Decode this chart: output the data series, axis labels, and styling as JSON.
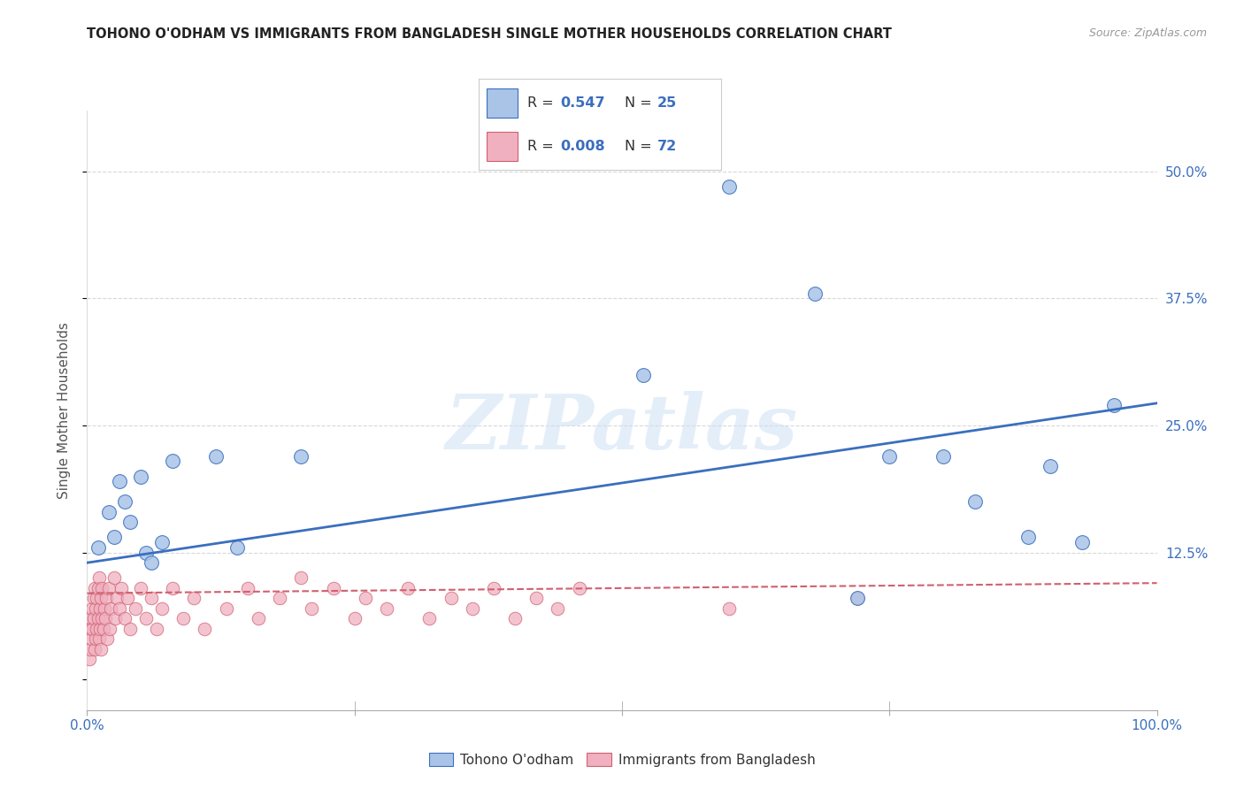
{
  "title": "TOHONO O'ODHAM VS IMMIGRANTS FROM BANGLADESH SINGLE MOTHER HOUSEHOLDS CORRELATION CHART",
  "source": "Source: ZipAtlas.com",
  "ylabel": "Single Mother Households",
  "xlim": [
    0,
    1.0
  ],
  "ylim": [
    -0.03,
    0.56
  ],
  "xticks": [
    0.0,
    1.0
  ],
  "xticklabels": [
    "0.0%",
    "100.0%"
  ],
  "yticks": [
    0.0,
    0.125,
    0.25,
    0.375,
    0.5
  ],
  "yticklabels": [
    "",
    "12.5%",
    "25.0%",
    "37.5%",
    "50.0%"
  ],
  "blue_color": "#aac4e8",
  "pink_color": "#f0b0c0",
  "blue_line_color": "#3a6fbe",
  "pink_line_color": "#d06070",
  "grid_color": "#c8c8c8",
  "watermark_text": "ZIPatlas",
  "blue_scatter_x": [
    0.01,
    0.02,
    0.025,
    0.03,
    0.035,
    0.04,
    0.05,
    0.055,
    0.06,
    0.07,
    0.08,
    0.12,
    0.14,
    0.2,
    0.52,
    0.6,
    0.68,
    0.72,
    0.75,
    0.8,
    0.83,
    0.88,
    0.9,
    0.93,
    0.96
  ],
  "blue_scatter_y": [
    0.13,
    0.165,
    0.14,
    0.195,
    0.175,
    0.155,
    0.2,
    0.125,
    0.115,
    0.135,
    0.215,
    0.22,
    0.13,
    0.22,
    0.3,
    0.485,
    0.38,
    0.08,
    0.22,
    0.22,
    0.175,
    0.14,
    0.21,
    0.135,
    0.27
  ],
  "pink_scatter_x": [
    0.002,
    0.003,
    0.003,
    0.004,
    0.004,
    0.005,
    0.005,
    0.006,
    0.006,
    0.007,
    0.007,
    0.008,
    0.008,
    0.009,
    0.009,
    0.01,
    0.01,
    0.011,
    0.011,
    0.012,
    0.012,
    0.013,
    0.013,
    0.014,
    0.014,
    0.015,
    0.016,
    0.017,
    0.018,
    0.019,
    0.02,
    0.021,
    0.022,
    0.025,
    0.026,
    0.028,
    0.03,
    0.032,
    0.035,
    0.038,
    0.04,
    0.045,
    0.05,
    0.055,
    0.06,
    0.065,
    0.07,
    0.08,
    0.09,
    0.1,
    0.11,
    0.13,
    0.15,
    0.16,
    0.18,
    0.2,
    0.21,
    0.23,
    0.25,
    0.26,
    0.28,
    0.3,
    0.32,
    0.34,
    0.36,
    0.38,
    0.4,
    0.42,
    0.44,
    0.46,
    0.6,
    0.72
  ],
  "pink_scatter_y": [
    0.02,
    0.03,
    0.05,
    0.04,
    0.06,
    0.05,
    0.07,
    0.06,
    0.08,
    0.03,
    0.09,
    0.04,
    0.07,
    0.05,
    0.08,
    0.06,
    0.09,
    0.04,
    0.1,
    0.05,
    0.07,
    0.03,
    0.08,
    0.06,
    0.09,
    0.05,
    0.07,
    0.06,
    0.08,
    0.04,
    0.09,
    0.05,
    0.07,
    0.1,
    0.06,
    0.08,
    0.07,
    0.09,
    0.06,
    0.08,
    0.05,
    0.07,
    0.09,
    0.06,
    0.08,
    0.05,
    0.07,
    0.09,
    0.06,
    0.08,
    0.05,
    0.07,
    0.09,
    0.06,
    0.08,
    0.1,
    0.07,
    0.09,
    0.06,
    0.08,
    0.07,
    0.09,
    0.06,
    0.08,
    0.07,
    0.09,
    0.06,
    0.08,
    0.07,
    0.09,
    0.07,
    0.08
  ],
  "blue_line_x": [
    0.0,
    1.0
  ],
  "blue_line_y": [
    0.115,
    0.272
  ],
  "pink_line_x": [
    0.0,
    1.0
  ],
  "pink_line_y": [
    0.085,
    0.095
  ],
  "legend_blue_label": "Tohono O'odham",
  "legend_pink_label": "Immigrants from Bangladesh",
  "legend_r1": "0.547",
  "legend_n1": "25",
  "legend_r2": "0.008",
  "legend_n2": "72"
}
